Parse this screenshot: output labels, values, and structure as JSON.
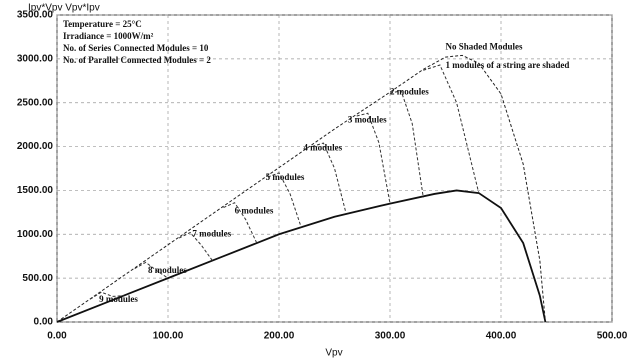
{
  "chart_data": {
    "type": "line",
    "y_label": "Ipv*Vpv  Vpv*Ipv",
    "x_label": "Vpv",
    "xlim": [
      0,
      500
    ],
    "xticks": [
      {
        "value": 0,
        "label": "0.00"
      },
      {
        "value": 100,
        "label": "100.00"
      },
      {
        "value": 200,
        "label": "200.00"
      },
      {
        "value": 300,
        "label": "300.00"
      },
      {
        "value": 400,
        "label": "400.00"
      },
      {
        "value": 500,
        "label": "500.00"
      }
    ],
    "ylim": [
      0,
      3500
    ],
    "yticks": [
      {
        "value": 0,
        "label": "0.00"
      },
      {
        "value": 500,
        "label": "500.00"
      },
      {
        "value": 1000,
        "label": "1000.00"
      },
      {
        "value": 1500,
        "label": "1500.00"
      },
      {
        "value": 2000,
        "label": "2000.00"
      },
      {
        "value": 2500,
        "label": "2500.00"
      },
      {
        "value": 3000,
        "label": "3000.00"
      },
      {
        "value": 3500,
        "label": "3500.00"
      }
    ],
    "grid": true,
    "info": [
      "Temperature = 25°C",
      "Irradiance = 1000W/m²",
      "No. of Series Connected Modules = 10",
      "No. of Parallel Connected Modules = 2"
    ],
    "annotations": [
      {
        "text": "No Shaded Modules",
        "x": 350,
        "y": 3130
      },
      {
        "text": "1 modules of a string are shaded",
        "x": 350,
        "y": 2920
      },
      {
        "text": "2 modules",
        "x": 300,
        "y": 2620
      },
      {
        "text": "3 modules",
        "x": 262,
        "y": 2300
      },
      {
        "text": "4 modules",
        "x": 222,
        "y": 1980
      },
      {
        "text": "5 modules",
        "x": 188,
        "y": 1640
      },
      {
        "text": "6 modules",
        "x": 160,
        "y": 1260
      },
      {
        "text": "7 modules",
        "x": 122,
        "y": 1000
      },
      {
        "text": "8 modules",
        "x": 82,
        "y": 580
      },
      {
        "text": "9 modules",
        "x": 38,
        "y": 250
      }
    ],
    "series": [
      {
        "color": "#222",
        "dash": true,
        "x": [
          0,
          50,
          100,
          150,
          200,
          250,
          300,
          330,
          350,
          365,
          380,
          400,
          420,
          435,
          440
        ],
        "values": [
          0,
          440,
          880,
          1320,
          1760,
          2200,
          2620,
          2880,
          3020,
          3040,
          2950,
          2600,
          1800,
          700,
          0
        ]
      },
      {
        "color": "#111",
        "dash": false,
        "x": [
          0,
          50,
          100,
          150,
          200,
          250,
          300,
          340,
          360,
          380,
          400,
          420,
          435,
          440
        ],
        "values": [
          0,
          250,
          500,
          750,
          1000,
          1200,
          1350,
          1460,
          1500,
          1470,
          1300,
          900,
          300,
          0
        ]
      },
      {
        "color": "#333",
        "dash": true,
        "x": [
          330,
          345,
          360,
          380
        ],
        "values": [
          2870,
          2930,
          2500,
          1470
        ]
      },
      {
        "color": "#333",
        "dash": true,
        "x": [
          300,
          310,
          320,
          330
        ],
        "values": [
          2610,
          2635,
          2263,
          1420
        ]
      },
      {
        "color": "#333",
        "dash": true,
        "x": [
          270,
          280,
          290,
          300
        ],
        "values": [
          2349,
          2380,
          2044,
          1350
        ]
      },
      {
        "color": "#333",
        "dash": true,
        "x": [
          230,
          240,
          250,
          260
        ],
        "values": [
          2001,
          2040,
          1752,
          1260
        ]
      },
      {
        "color": "#333",
        "dash": true,
        "x": [
          190,
          200,
          210,
          220
        ],
        "values": [
          1653,
          1700,
          1460,
          1080
        ]
      },
      {
        "color": "#333",
        "dash": true,
        "x": [
          150,
          160,
          170,
          180
        ],
        "values": [
          1305,
          1360,
          1168,
          900
        ]
      },
      {
        "color": "#333",
        "dash": true,
        "x": [
          110,
          120,
          130,
          140
        ],
        "values": [
          957,
          1020,
          876,
          700
        ]
      },
      {
        "color": "#333",
        "dash": true,
        "x": [
          70,
          80,
          90,
          100
        ],
        "values": [
          609,
          680,
          584,
          500
        ]
      },
      {
        "color": "#333",
        "dash": true,
        "x": [
          30,
          40,
          50,
          60
        ],
        "values": [
          261,
          340,
          292,
          300
        ]
      }
    ]
  }
}
